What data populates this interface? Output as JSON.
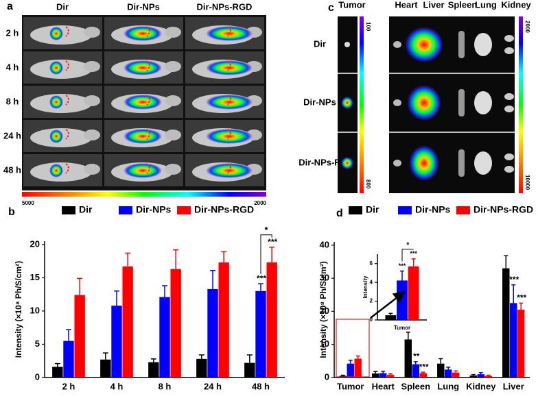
{
  "panel_a": {
    "label": "a",
    "columns": [
      "Dir",
      "Dir-NPs",
      "Dir-NPs-RGD"
    ],
    "rows": [
      "2 h",
      "4 h",
      "8 h",
      "24 h",
      "48 h"
    ],
    "colorbar_ticks": [
      5000,
      2000
    ]
  },
  "panel_c": {
    "label": "c",
    "columns": [
      "Tumor",
      "Heart",
      "Liver",
      "Spleen",
      "Lung",
      "Kidney"
    ],
    "rows": [
      "Dir",
      "Dir-NPs",
      "Dir-NPs-R"
    ],
    "tumor_colorbar": [
      100,
      800
    ],
    "organ_colorbar": [
      2000,
      10000
    ]
  },
  "chart_data": [
    {
      "type": "bar",
      "panel_label": "b",
      "y_label": "Intensity (×10⁸ Ph/S/cm²)",
      "categories": [
        "2 h",
        "4 h",
        "8 h",
        "24 h",
        "48 h"
      ],
      "series": [
        {
          "name": "Dir",
          "color": "#000000",
          "values": [
            1.6,
            2.7,
            2.3,
            2.8,
            2.2
          ],
          "errors": [
            0.5,
            1.0,
            0.5,
            0.6,
            1.2
          ],
          "significance": [
            null,
            null,
            null,
            null,
            null
          ]
        },
        {
          "name": "Dir-NPs",
          "color": "#0000ff",
          "values": [
            5.5,
            10.8,
            12.1,
            13.3,
            13.0
          ],
          "errors": [
            1.7,
            2.2,
            1.7,
            2.8,
            1.1
          ],
          "significance": [
            null,
            null,
            null,
            null,
            "***"
          ]
        },
        {
          "name": "Dir-NPs-RGD",
          "color": "#ff0000",
          "values": [
            12.4,
            16.7,
            16.3,
            17.3,
            17.3
          ],
          "errors": [
            2.5,
            2.0,
            2.9,
            1.6,
            2.3
          ],
          "significance": [
            null,
            null,
            null,
            null,
            "***"
          ]
        }
      ],
      "bracket_label": "*",
      "ylim": [
        0,
        20.5
      ],
      "yticks": [
        0,
        5,
        10,
        15,
        20
      ],
      "legend": "top"
    },
    {
      "type": "bar",
      "panel_label": "d",
      "y_label": "Intensity (×10⁸ Ph/S/cm²)",
      "categories": [
        "Tumor",
        "Heart",
        "Spleen",
        "Lung",
        "Kidney",
        "Liver"
      ],
      "series": [
        {
          "name": "Dir",
          "color": "#000000",
          "values": [
            0.5,
            1.2,
            11.5,
            4.2,
            0.6,
            33
          ],
          "errors": [
            0.2,
            0.6,
            2.2,
            1.5,
            0.3,
            3.8
          ],
          "significance": [
            null,
            null,
            null,
            null,
            null,
            null
          ]
        },
        {
          "name": "Dir-NPs",
          "color": "#0000ff",
          "values": [
            4.2,
            1.3,
            4.0,
            2.4,
            1.0,
            22.5
          ],
          "errors": [
            1.0,
            0.6,
            0.8,
            0.7,
            0.5,
            5.5
          ],
          "significance": [
            null,
            null,
            "**",
            null,
            null,
            "***"
          ]
        },
        {
          "name": "Dir-NPs-RGD",
          "color": "#ff0000",
          "values": [
            5.7,
            0.8,
            1.3,
            1.5,
            0.5,
            20.5
          ],
          "errors": [
            0.8,
            0.3,
            0.3,
            0.5,
            0.2,
            2.0
          ],
          "significance": [
            null,
            null,
            "***",
            null,
            null,
            "***"
          ]
        }
      ],
      "ylim": [
        0,
        41
      ],
      "yticks": [
        0,
        10,
        20,
        30,
        40
      ],
      "legend": "top"
    },
    {
      "type": "bar",
      "y_label": "Intensity",
      "categories": [
        "Tumor"
      ],
      "series": [
        {
          "color": "#000000",
          "values": [
            0.5
          ],
          "errors": [
            0.2
          ],
          "significance": [
            null
          ]
        },
        {
          "color": "#0000ff",
          "values": [
            4.2
          ],
          "errors": [
            1.0
          ],
          "significance": [
            "***"
          ]
        },
        {
          "color": "#ff0000",
          "values": [
            5.7
          ],
          "errors": [
            0.8
          ],
          "significance": [
            "***"
          ]
        }
      ],
      "bracket_label": "*",
      "ylim": [
        0,
        7
      ],
      "yticks": [
        0,
        2,
        4,
        6
      ]
    }
  ]
}
